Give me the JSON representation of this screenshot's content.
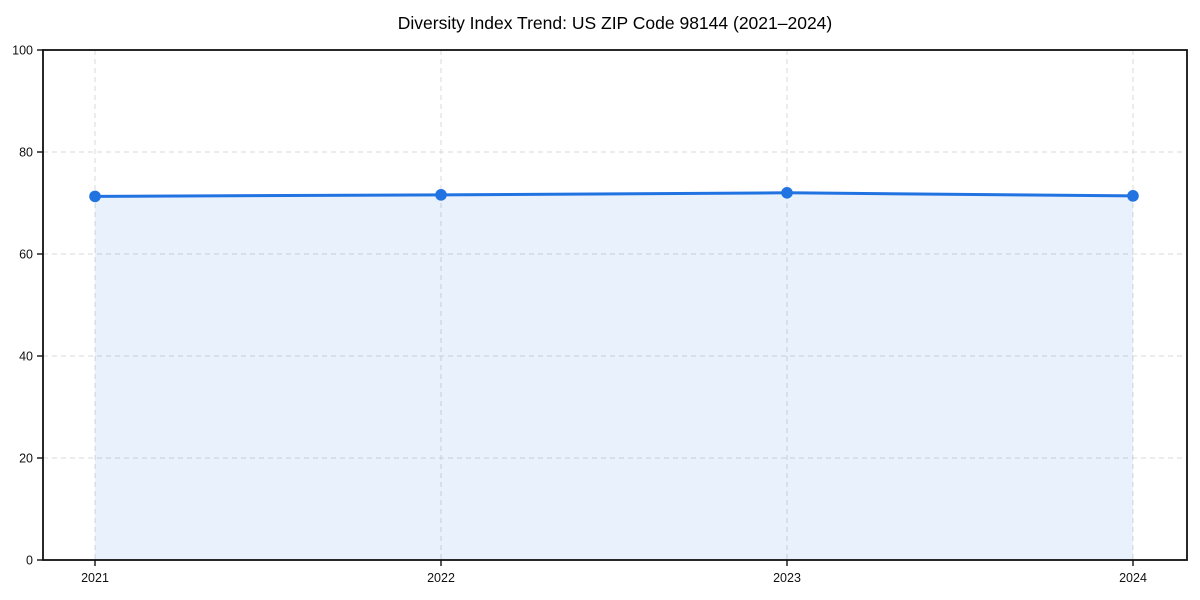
{
  "chart_data": {
    "type": "line",
    "title": "Diversity Index Trend: US ZIP Code 98144 (2021–2024)",
    "x": [
      2021,
      2022,
      2023,
      2024
    ],
    "x_labels": [
      "2021",
      "2022",
      "2023",
      "2024"
    ],
    "series": [
      {
        "name": "Diversity Index",
        "values": [
          71.3,
          71.6,
          72.0,
          71.4
        ]
      }
    ],
    "xlabel": "",
    "ylabel": "",
    "ylim": [
      0,
      100
    ],
    "yticks": [
      0,
      20,
      40,
      60,
      80,
      100
    ],
    "grid": true,
    "grid_style": "dashed",
    "legend_position": "none",
    "marker": "circle",
    "styles": {
      "line_color": "#2273e2",
      "marker_color": "#2273e2",
      "fill_color": "rgba(34, 115, 226, 0.10)",
      "grid_color": "#d8d8d8",
      "spine_color": "#111111",
      "tick_color": "#111111",
      "text_color": "#111111",
      "title_color": "#000000",
      "background": "#ffffff"
    }
  }
}
